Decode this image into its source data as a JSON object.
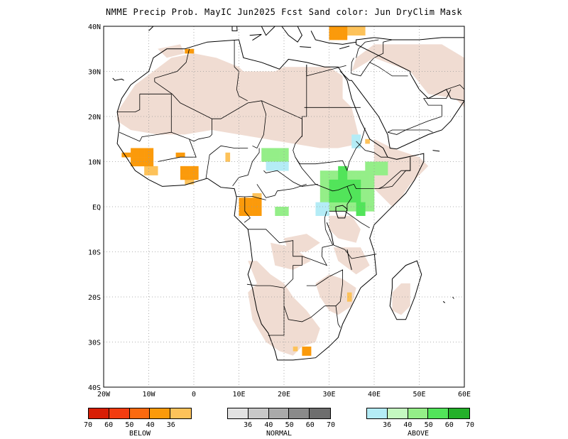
{
  "title": "NMME Precip Prob. MayIC  Jun2025 Fcst  Sand color: Jun DryClim Mask",
  "map": {
    "lon_range": [
      -20,
      60
    ],
    "lat_range": [
      -40,
      40
    ],
    "x_ticks": [
      "20W",
      "10W",
      "0",
      "10E",
      "20E",
      "30E",
      "40E",
      "50E",
      "60E"
    ],
    "y_ticks": [
      "40N",
      "30N",
      "20N",
      "10N",
      "EQ",
      "10S",
      "20S",
      "30S",
      "40S"
    ],
    "grid": true,
    "dry_mask_color": "#f0dcd2"
  },
  "legend": {
    "below": {
      "label": "BELOW",
      "colors": [
        "#d81e05",
        "#f23c10",
        "#fb6a10",
        "#fb9a0b",
        "#fdc25a"
      ],
      "tick_labels": [
        "70",
        "60",
        "50",
        "40",
        "36"
      ]
    },
    "normal": {
      "label": "NORMAL",
      "colors": [
        "#e2e2e2",
        "#c8c8c8",
        "#aaaaaa",
        "#8a8a8a",
        "#6e6e6e"
      ],
      "tick_labels": [
        "36",
        "40",
        "50",
        "60",
        "70"
      ]
    },
    "above": {
      "label": "ABOVE",
      "colors": [
        "#b4ecf6",
        "#c4f8c0",
        "#94ee88",
        "#52e45a",
        "#24b02a"
      ],
      "tick_labels": [
        "36",
        "40",
        "50",
        "60",
        "70"
      ]
    }
  }
}
